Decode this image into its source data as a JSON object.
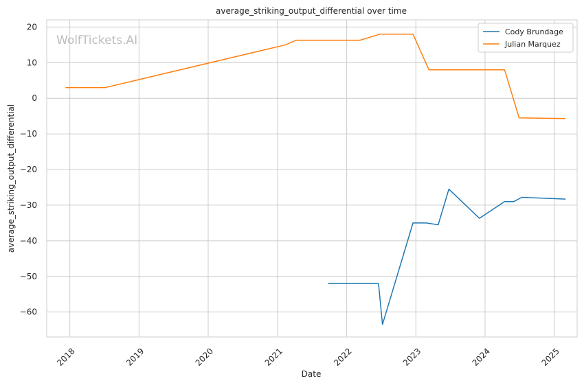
{
  "chart_data": {
    "type": "line",
    "title": "average_striking_output_differential over time",
    "xlabel": "Date",
    "ylabel": "average_striking_output_differential",
    "watermark": "WolfTickets.AI",
    "xlim": [
      "2017-09-01",
      "2025-05-01"
    ],
    "ylim": [
      -67,
      22
    ],
    "x_ticks": [
      {
        "date": "2018-01-01",
        "label": "2018"
      },
      {
        "date": "2019-01-01",
        "label": "2019"
      },
      {
        "date": "2020-01-01",
        "label": "2020"
      },
      {
        "date": "2021-01-01",
        "label": "2021"
      },
      {
        "date": "2022-01-01",
        "label": "2022"
      },
      {
        "date": "2023-01-01",
        "label": "2023"
      },
      {
        "date": "2024-01-01",
        "label": "2024"
      },
      {
        "date": "2025-01-01",
        "label": "2025"
      }
    ],
    "y_ticks": [
      {
        "value": 20,
        "label": "20"
      },
      {
        "value": 10,
        "label": "10"
      },
      {
        "value": 0,
        "label": "0"
      },
      {
        "value": -10,
        "label": "−10"
      },
      {
        "value": -20,
        "label": "−20"
      },
      {
        "value": -30,
        "label": "−30"
      },
      {
        "value": -40,
        "label": "−40"
      },
      {
        "value": -50,
        "label": "−50"
      },
      {
        "value": -60,
        "label": "−60"
      }
    ],
    "grid": true,
    "legend_position": "top-right",
    "series": [
      {
        "name": "Cody Brundage",
        "color": "#1f77b4",
        "points": [
          [
            "2021-09-25",
            -52
          ],
          [
            "2022-06-18",
            -52
          ],
          [
            "2022-07-09",
            -63.5
          ],
          [
            "2022-12-17",
            -35
          ],
          [
            "2023-02-25",
            -35
          ],
          [
            "2023-04-29",
            -35.5
          ],
          [
            "2023-06-24",
            -25.5
          ],
          [
            "2023-12-02",
            -33.7
          ],
          [
            "2024-04-13",
            -29
          ],
          [
            "2024-06-01",
            -29
          ],
          [
            "2024-07-13",
            -27.8
          ],
          [
            "2025-03-01",
            -28.3
          ]
        ]
      },
      {
        "name": "Julian Marquez",
        "color": "#ff7f0e",
        "points": [
          [
            "2017-12-09",
            3
          ],
          [
            "2018-07-07",
            3
          ],
          [
            "2021-02-13",
            15
          ],
          [
            "2021-04-10",
            16.3
          ],
          [
            "2022-03-12",
            16.3
          ],
          [
            "2022-06-25",
            18
          ],
          [
            "2022-12-17",
            18
          ],
          [
            "2023-03-11",
            8
          ],
          [
            "2024-04-13",
            8
          ],
          [
            "2024-06-29",
            -5.5
          ],
          [
            "2025-03-01",
            -5.7
          ]
        ]
      }
    ]
  }
}
